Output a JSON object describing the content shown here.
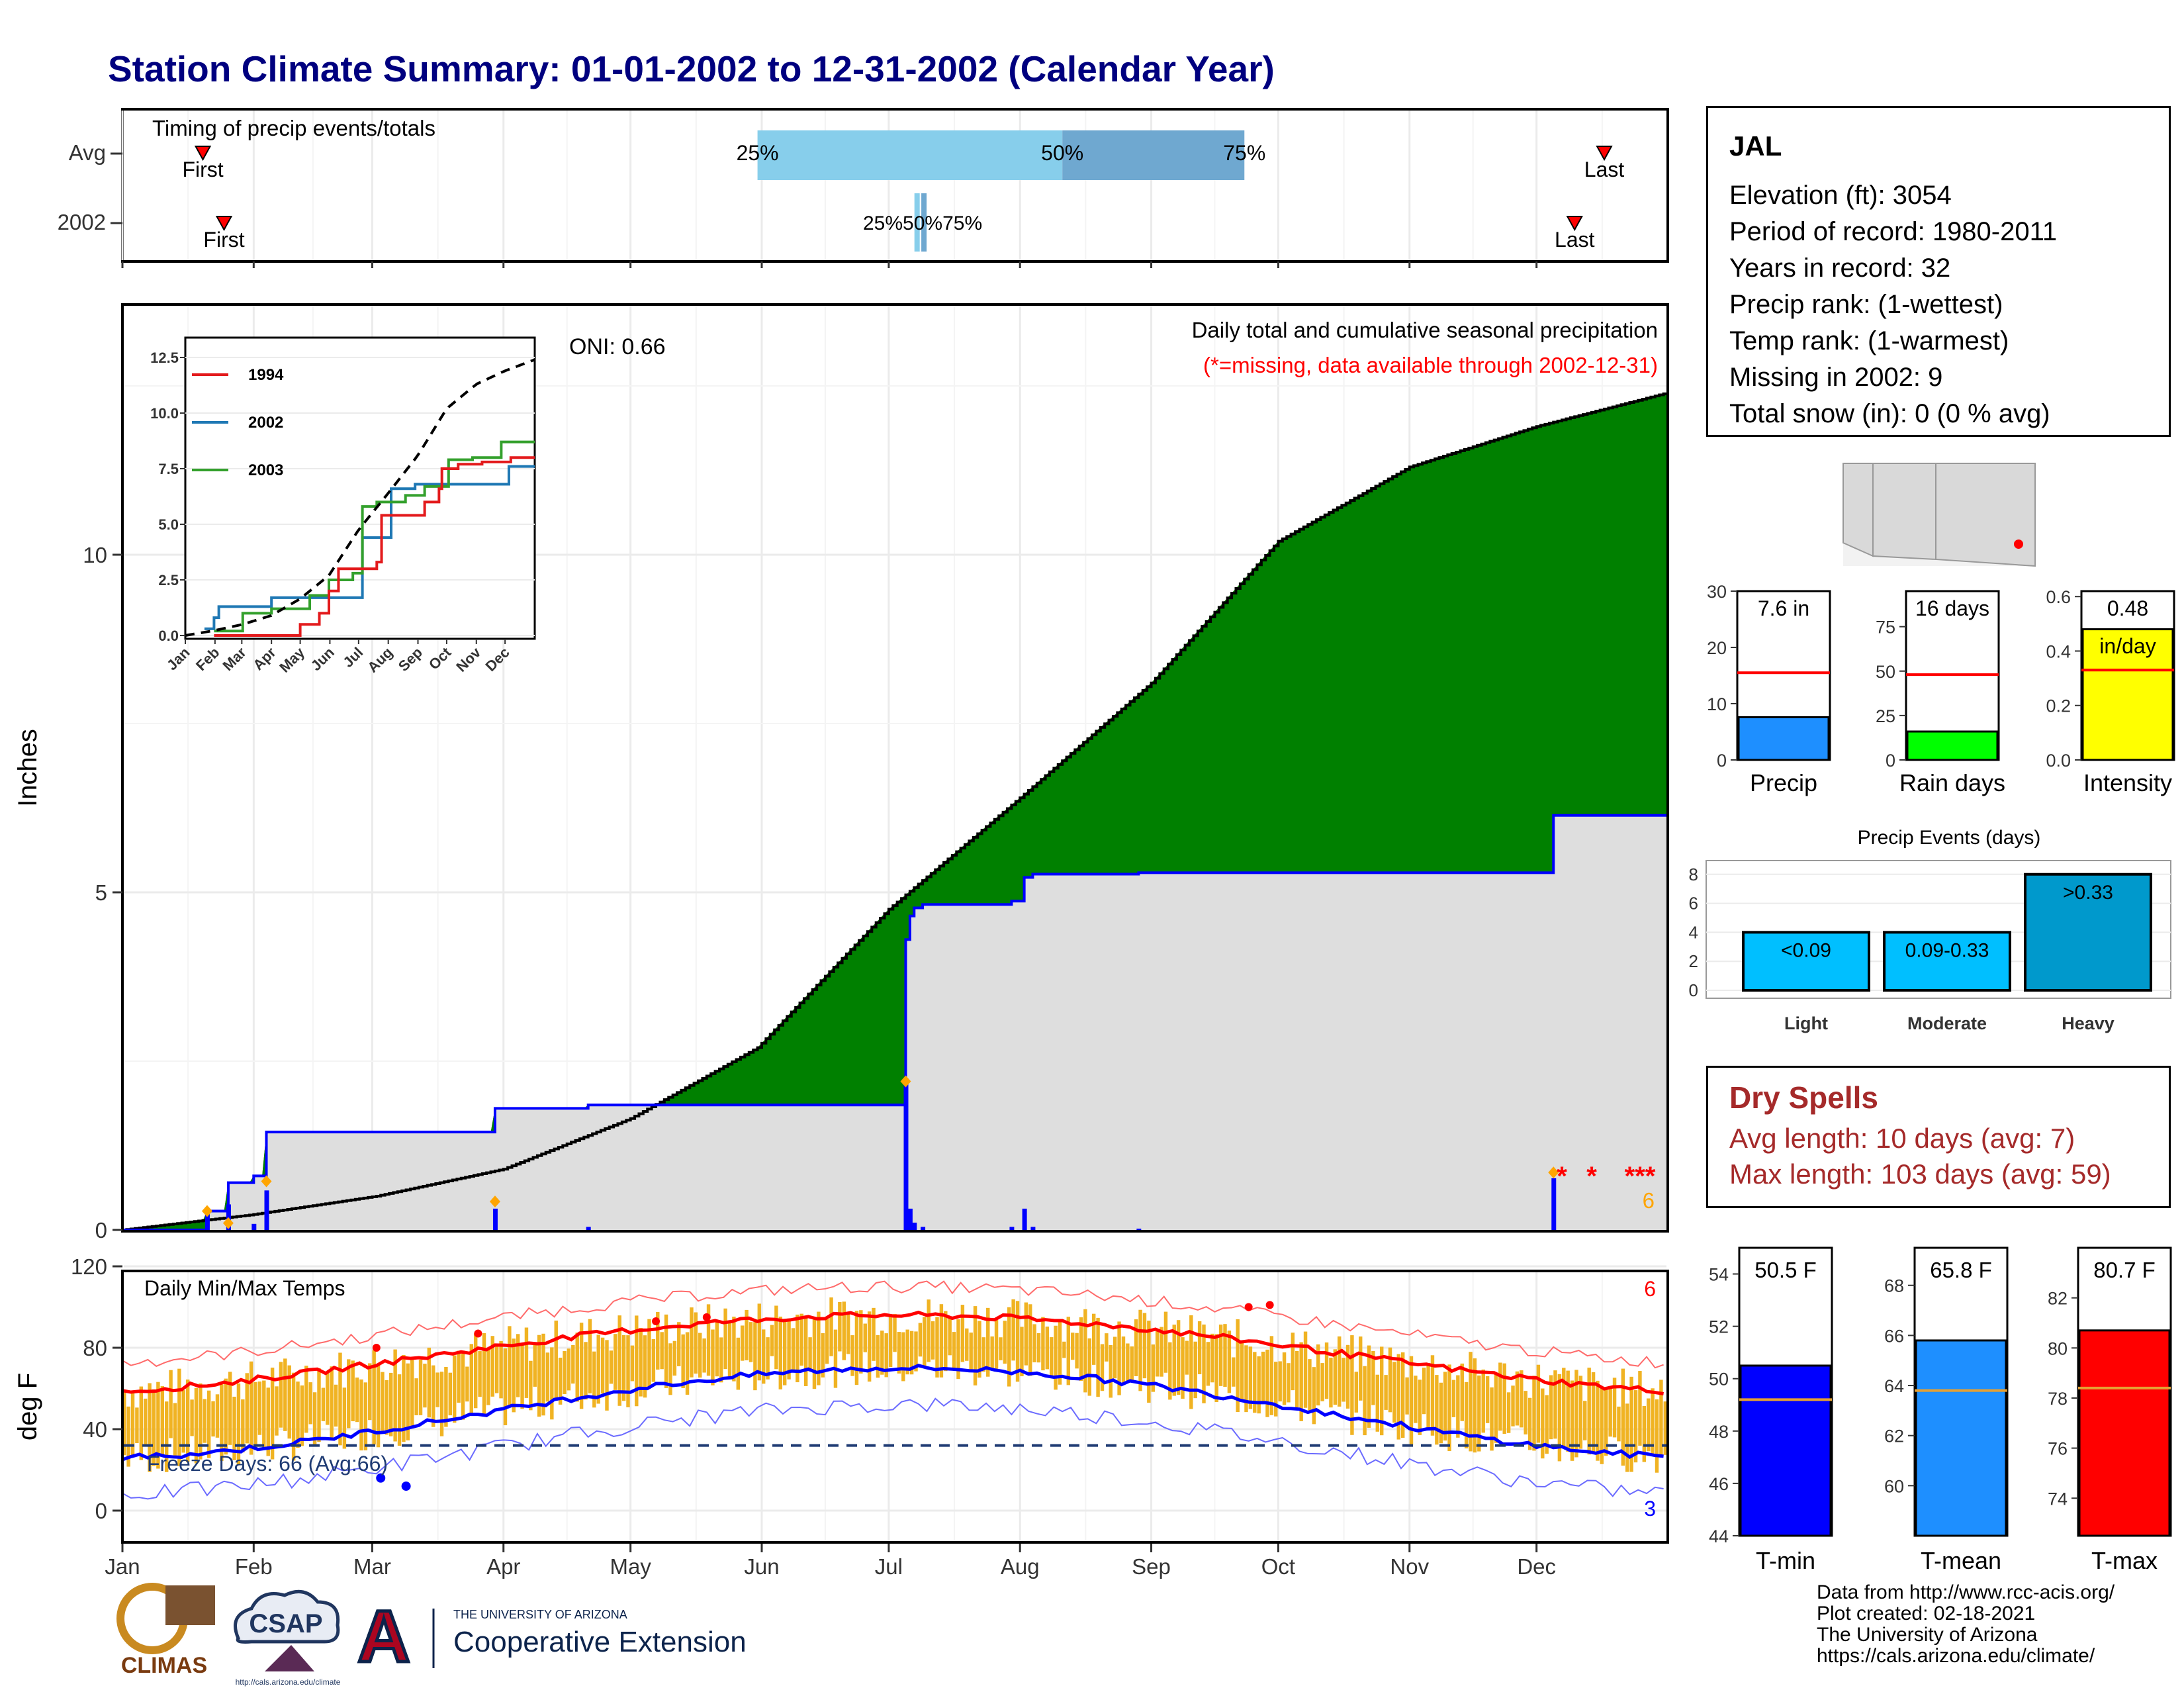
{
  "title": "Station Climate Summary: 01-01-2002 to 12-31-2002 (Calendar Year)",
  "months": [
    "Jan",
    "Feb",
    "Mar",
    "Apr",
    "May",
    "Jun",
    "Jul",
    "Aug",
    "Sep",
    "Oct",
    "Nov",
    "Dec"
  ],
  "timing": {
    "label": "Timing of precip events/totals",
    "rows": [
      "Avg",
      "2002"
    ],
    "first_label": "First",
    "last_label": "Last",
    "avg": {
      "first_doy": 19,
      "last_doy": 350,
      "p25_doy": 150,
      "p50_doy": 222,
      "p75_doy": 265,
      "p25_label": "25%",
      "p50_label": "50%",
      "p75_label": "75%"
    },
    "y2002": {
      "first_doy": 24,
      "last_doy": 343,
      "p25_doy": 188,
      "p50_doy": 189,
      "p75_doy": 190,
      "overlap_label": "25%50%75%"
    }
  },
  "precip": {
    "ylabel": "Inches",
    "yticks": [
      0,
      5,
      10
    ],
    "title": "Daily total and cumulative seasonal precipitation",
    "subtitle": "(*=missing, data available through 2002-12-31)",
    "oni": "ONI: 0.66",
    "missing_marks": [
      "*",
      "*",
      "***"
    ],
    "missing_count": "6",
    "cumulative_avg_total": 12.4,
    "cumulative_2002_total": 7.6
  },
  "inset": {
    "yticks": [
      "0.0",
      "2.5",
      "5.0",
      "7.5",
      "10.0",
      "12.5"
    ],
    "xticks": [
      "Jan",
      "Feb",
      "Mar",
      "Apr",
      "May",
      "Jun",
      "Jul",
      "Aug",
      "Sep",
      "Oct",
      "Nov",
      "Dec"
    ],
    "legend": [
      "1994",
      "2002",
      "2003"
    ]
  },
  "temps": {
    "ylabel": "deg F",
    "title": "Daily Min/Max Temps",
    "yticks": [
      0,
      40,
      80,
      120
    ],
    "freeze_label": "Freeze Days: 66 (Avg:66)",
    "missing_max": "6",
    "missing_min": "3"
  },
  "station": {
    "name": "JAL",
    "lines": [
      "Elevation (ft): 3054",
      "Period of record: 1980-2011",
      "Years in record: 32",
      "Precip rank:  (1-wettest)",
      "Temp rank:  (1-warmest)",
      "Missing in 2002: 9",
      "Total snow (in): 0 (0 % avg)"
    ]
  },
  "summary_bars": [
    {
      "label": "Precip",
      "value_text": "7.6 in",
      "value": 7.6,
      "avg": 15.5,
      "yticks": [
        "0",
        "10",
        "20",
        "30"
      ],
      "ymax": 30,
      "color": "#1e8fff"
    },
    {
      "label": "Rain days",
      "value_text": "16 days",
      "value": 16,
      "avg": 48,
      "yticks": [
        "0",
        "25",
        "50",
        "75"
      ],
      "ymax": 95,
      "color": "#00ff00"
    },
    {
      "label": "Intensity",
      "value_text": "0.48",
      "value_text2": "in/day",
      "value": 0.48,
      "avg": 0.33,
      "yticks": [
        "0.0",
        "0.2",
        "0.4",
        "0.6"
      ],
      "ymax": 0.62,
      "color": "#ffff00"
    }
  ],
  "precip_events": {
    "title": "Precip Events (days)",
    "categories": [
      "Light",
      "Moderate",
      "Heavy"
    ],
    "bin_labels": [
      "<0.09",
      "0.09-0.33",
      ">0.33"
    ],
    "values": [
      4,
      4,
      8
    ],
    "yticks": [
      "0",
      "2",
      "4",
      "6",
      "8"
    ]
  },
  "dry_spells": {
    "title": "Dry Spells",
    "avg_length": "Avg length: 10 days (avg: 7)",
    "max_length": "Max length: 103 days (avg: 59)"
  },
  "temp_bars": [
    {
      "label": "T-min",
      "value_text": "50.5 F",
      "value": 50.5,
      "avg": 49.2,
      "ymin": 44,
      "ymax": 55,
      "yticks": [
        "44",
        "46",
        "48",
        "50",
        "52",
        "54"
      ],
      "color": "#0000ff"
    },
    {
      "label": "T-mean",
      "value_text": "65.8 F",
      "value": 65.8,
      "avg": 63.8,
      "ymin": 58,
      "ymax": 69.5,
      "yticks": [
        "60",
        "62",
        "64",
        "66",
        "68"
      ],
      "color": "#1e8fff"
    },
    {
      "label": "T-max",
      "value_text": "80.7 F",
      "value": 80.7,
      "avg": 78.4,
      "ymin": 72.5,
      "ymax": 84,
      "yticks": [
        "74",
        "76",
        "78",
        "80",
        "82"
      ],
      "color": "#ff0000"
    }
  ],
  "credits": [
    "Data from http://www.rcc-acis.org/",
    "Plot created: 02-18-2021",
    "The University of Arizona",
    "https://cals.arizona.edu/climate/"
  ],
  "logos": {
    "climas": "CLIMAS",
    "csap": "CSAP",
    "csap_url": "http://cals.arizona.edu/climate",
    "ua_small": "THE UNIVERSITY OF ARIZONA",
    "ua_ext": "Cooperative Extension"
  },
  "colors": {
    "title": "#00007f",
    "cum_fill": "#8b5a00",
    "cum_above": "#008000",
    "avg_missing": "#ff0000",
    "precip_bar": "#0000ff",
    "temp_bar": "#f0b323",
    "dot": "#ffa500"
  }
}
